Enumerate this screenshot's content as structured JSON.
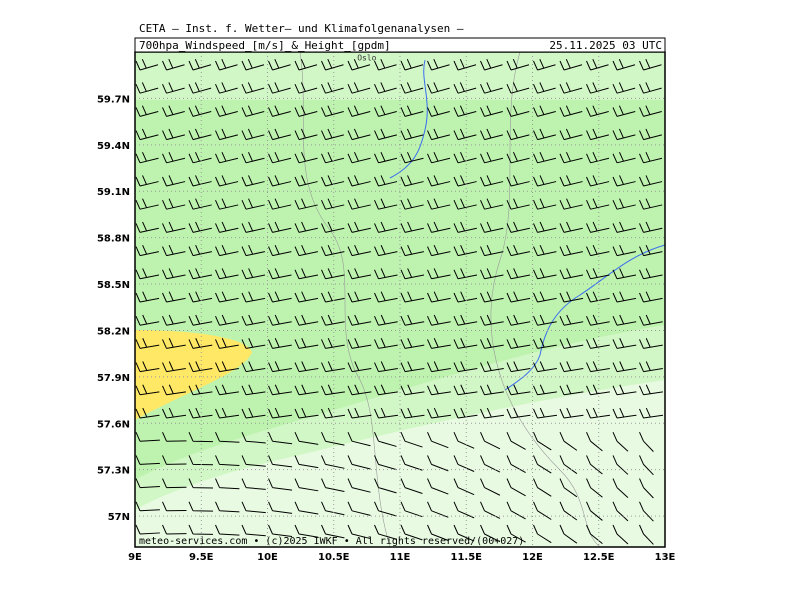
{
  "header": {
    "institution": "CETA – Inst. f. Wetter– und Klimafolgenanalysen –",
    "product": "700hpa_Windspeed_[m/s]_&_Height_[gpdm]",
    "date": "25.11.2025 03 UTC"
  },
  "map": {
    "xlim": [
      9,
      13
    ],
    "ylim": [
      56.8,
      60
    ],
    "xticks": [
      {
        "value": 9,
        "label": "9E"
      },
      {
        "value": 9.5,
        "label": "9.5E"
      },
      {
        "value": 10,
        "label": "10E"
      },
      {
        "value": 10.5,
        "label": "10.5E"
      },
      {
        "value": 11,
        "label": "11E"
      },
      {
        "value": 11.5,
        "label": "11.5E"
      },
      {
        "value": 12,
        "label": "12E"
      },
      {
        "value": 12.5,
        "label": "12.5E"
      },
      {
        "value": 13,
        "label": "13E"
      }
    ],
    "yticks": [
      {
        "value": 57,
        "label": "57N"
      },
      {
        "value": 57.3,
        "label": "57.3N"
      },
      {
        "value": 57.6,
        "label": "57.6N"
      },
      {
        "value": 57.9,
        "label": "57.9N"
      },
      {
        "value": 58.2,
        "label": "58.2N"
      },
      {
        "value": 58.5,
        "label": "58.5N"
      },
      {
        "value": 58.8,
        "label": "58.8N"
      },
      {
        "value": 59.1,
        "label": "59.1N"
      },
      {
        "value": 59.4,
        "label": "59.4N"
      },
      {
        "value": 59.7,
        "label": "59.7N"
      }
    ],
    "places": [
      {
        "name": "Oslo",
        "lon": 10.75,
        "lat": 59.97
      }
    ]
  },
  "footer": "meteo-services.com • (c)2025 IWKF • All rights reserved/(00+027)"
}
